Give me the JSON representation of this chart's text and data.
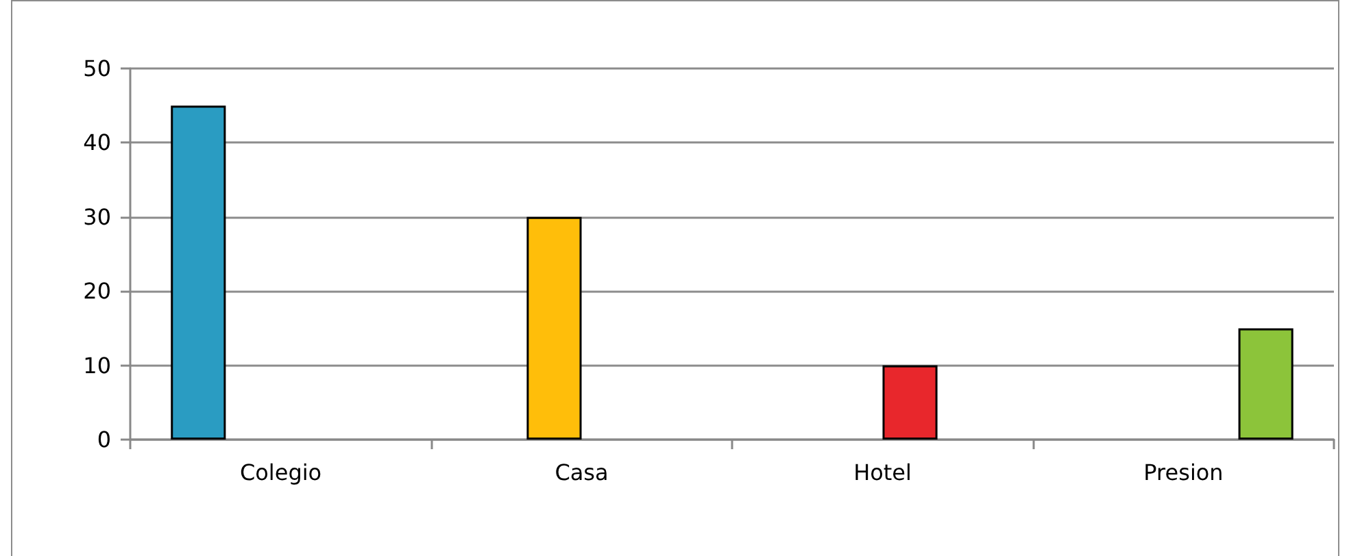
{
  "chart_data": {
    "type": "bar",
    "categories": [
      "Colegio",
      "Casa",
      "Hotel",
      "Presion"
    ],
    "series": [
      {
        "color": "#2a9cc2",
        "values": [
          45,
          null,
          null,
          null
        ]
      },
      {
        "color": "#ffbe0a",
        "values": [
          null,
          30,
          null,
          null
        ]
      },
      {
        "color": "#e8272c",
        "values": [
          null,
          null,
          10,
          null
        ]
      },
      {
        "color": "#8cc43a",
        "values": [
          null,
          null,
          null,
          15
        ]
      }
    ],
    "ylim": [
      0,
      50
    ],
    "yticks": [
      0,
      10,
      20,
      30,
      40,
      50
    ],
    "grid": "y"
  }
}
